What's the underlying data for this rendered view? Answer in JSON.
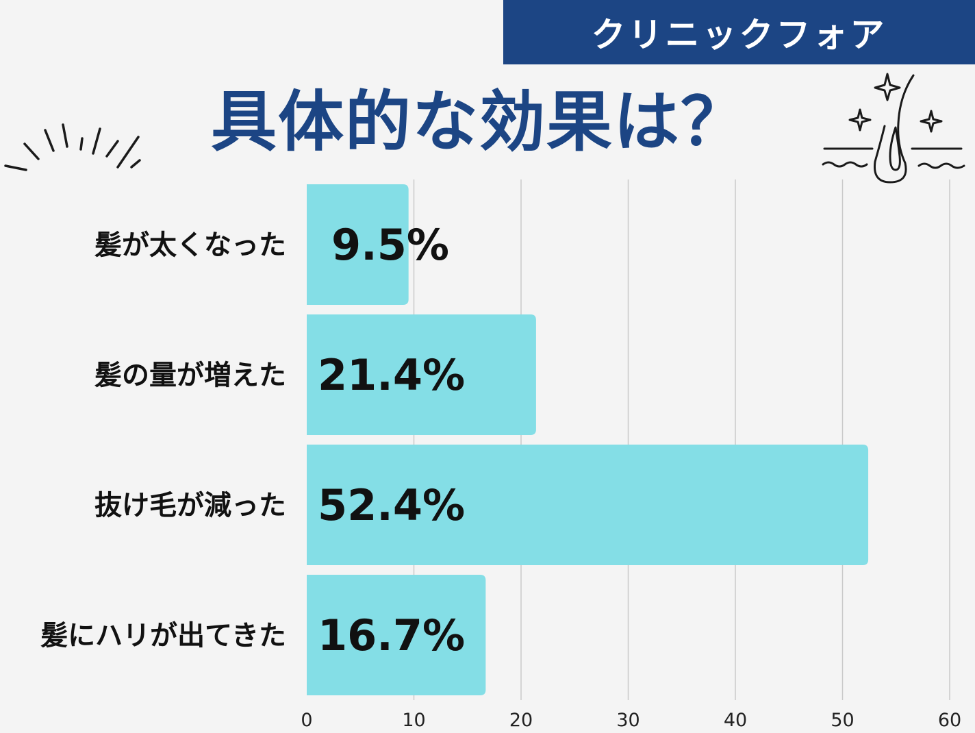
{
  "header": {
    "brand": "クリニックフォア",
    "title": "具体的な効果は？"
  },
  "colors": {
    "brand": "#1c4584",
    "bar": "#84dee6",
    "background": "#f4f4f4",
    "grid": "#c9c9c9"
  },
  "chart_data": {
    "type": "bar",
    "orientation": "horizontal",
    "categories": [
      "髪が太くなった",
      "髪の量が増えた",
      "抜け毛が減った",
      "髪にハリが出てきた"
    ],
    "values": [
      9.5,
      21.4,
      52.4,
      16.7
    ],
    "value_labels": [
      "9.5%",
      "21.4%",
      "52.4%",
      "16.7%"
    ],
    "xlim": [
      0,
      60
    ],
    "xticks": [
      0,
      10,
      20,
      30,
      40,
      50,
      60
    ],
    "grid": true
  }
}
